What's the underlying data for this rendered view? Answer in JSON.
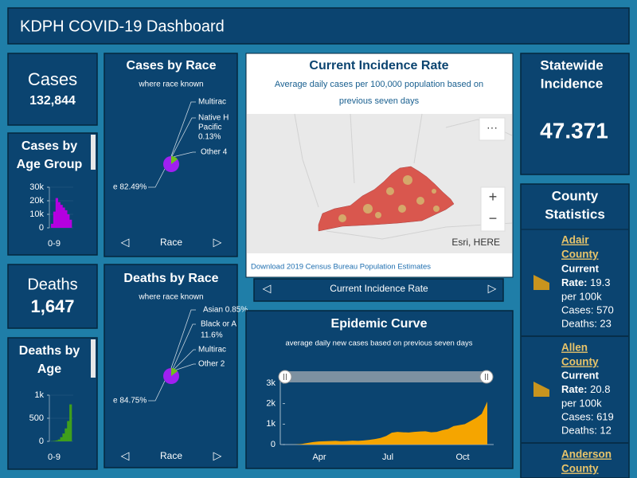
{
  "header": {
    "title": "KDPH COVID-19 Dashboard"
  },
  "cases": {
    "label": "Cases",
    "value": "132,844"
  },
  "deaths": {
    "label": "Deaths",
    "value": "1,647"
  },
  "cases_by_age": {
    "title_lines": [
      "Cases by",
      "Age Group"
    ],
    "type": "bar",
    "color": "#b400e0",
    "ylim": [
      0,
      30000
    ],
    "yticks": [
      {
        "value": 30000,
        "label": "30k"
      },
      {
        "value": 20000,
        "label": "20k"
      },
      {
        "value": 10000,
        "label": "10k"
      },
      0
    ],
    "x_label": "0-9",
    "values": [
      3000,
      12000,
      22000,
      19000,
      17000,
      15000,
      13000,
      10000,
      6000
    ]
  },
  "deaths_by_age": {
    "title_lines": [
      "Deaths by",
      "Age"
    ],
    "type": "bar",
    "color": "#3f9f1c",
    "ylim": [
      0,
      1000
    ],
    "yticks": [
      {
        "value": 1000,
        "label": "1k"
      },
      500,
      0
    ],
    "x_label": "0-9",
    "values": [
      5,
      10,
      20,
      40,
      90,
      170,
      280,
      440,
      800
    ]
  },
  "cases_by_race": {
    "title": "Cases by Race",
    "subtitle": "where race known",
    "labels": [
      "Multirac",
      "Native H",
      "Pacific",
      "0.13%",
      "Other 4"
    ],
    "main_label": "e 82.49%",
    "nav": "Race"
  },
  "deaths_by_race": {
    "title": "Deaths by Race",
    "subtitle": "where race known",
    "labels": [
      "Asian 0.85%",
      "Black or A",
      "11.6%",
      "Multirac",
      "Other 2"
    ],
    "main_label": "e 84.75%",
    "nav": "Race"
  },
  "map": {
    "title": "Current Incidence Rate",
    "subtitle_lines": [
      "Average daily cases per 100,000 population based on",
      "previous seven days"
    ],
    "menu": "···",
    "zoom_in": "+",
    "zoom_out": "−",
    "attribution": "Esri, HERE",
    "link": "Download 2019 Census Bureau Population Estimates",
    "nav": "Current Incidence Rate"
  },
  "statewide": {
    "title_lines": [
      "Statewide",
      "Incidence"
    ],
    "value": "47.371"
  },
  "county_stats": {
    "title_lines": [
      "County",
      "Statistics"
    ],
    "items": [
      {
        "name_lines": [
          "Adair",
          "County"
        ],
        "current": "Current",
        "rate_label": "Rate:",
        "rate": "19.3",
        "unit": "per 100k",
        "cases": "Cases: 570",
        "deaths": "Deaths: 23"
      },
      {
        "name_lines": [
          "Allen",
          "County"
        ],
        "current": "Current",
        "rate_label": "Rate:",
        "rate": "20.8",
        "unit": "per 100k",
        "cases": "Cases: 619",
        "deaths": "Deaths: 12"
      },
      {
        "name_lines": [
          "Anderson",
          "County"
        ]
      }
    ]
  },
  "epidemic_curve": {
    "title": "Epidemic Curve",
    "subtitle": "average daily new cases based on previous seven days",
    "type": "area",
    "color": "#f5a500",
    "ylim": [
      0,
      3000
    ],
    "yticks": [
      {
        "value": 3000,
        "label": "3k"
      },
      {
        "value": 2000,
        "label": "2k"
      },
      {
        "value": 1000,
        "label": "1k"
      },
      0
    ],
    "xticks": [
      "Apr",
      "Jul",
      "Oct"
    ],
    "values": [
      0,
      0,
      5,
      30,
      80,
      120,
      150,
      160,
      170,
      180,
      160,
      170,
      190,
      180,
      200,
      230,
      270,
      320,
      420,
      580,
      620,
      600,
      590,
      620,
      640,
      650,
      600,
      620,
      700,
      760,
      900,
      950,
      1000,
      1150,
      1300,
      1500,
      2100
    ]
  }
}
